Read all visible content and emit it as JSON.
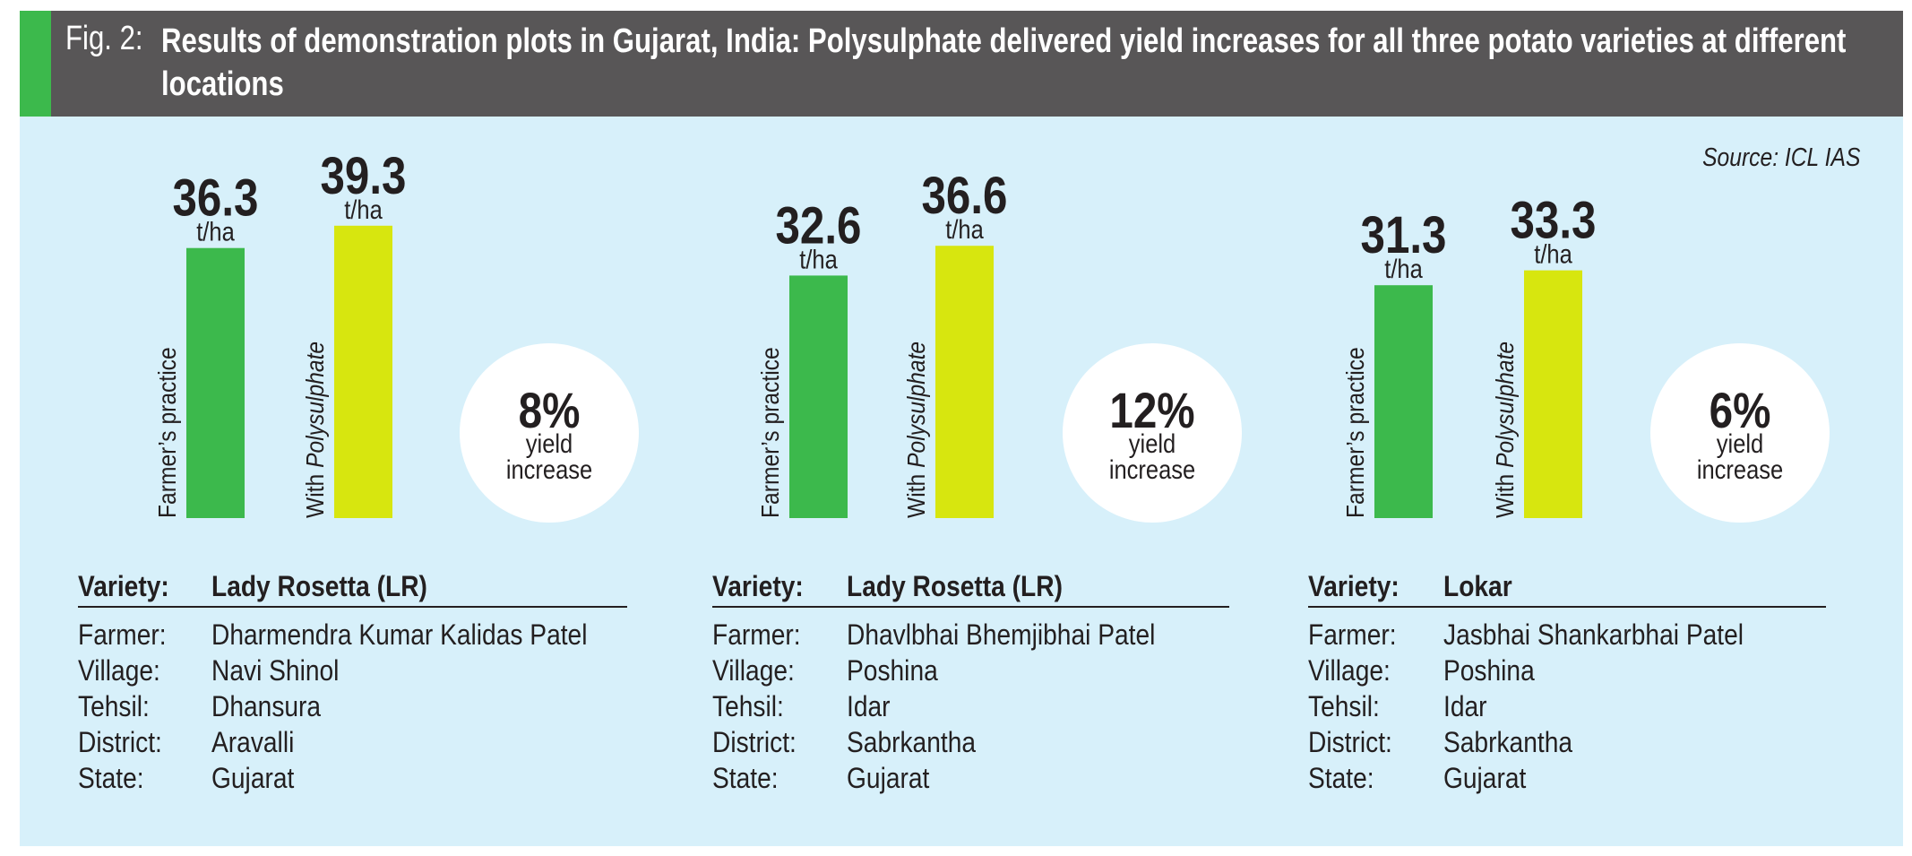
{
  "figure": {
    "label": "Fig. 2:",
    "title": "Results of demonstration plots in Gujarat, India: Polysulphate delivered yield increases for all three potato varieties at different locations",
    "source": "Source: ICL IAS"
  },
  "colors": {
    "header_bg": "#585657",
    "accent_green": "#3cb94c",
    "farmer_bar": "#3cb94c",
    "polysulphate_bar": "#d7e60f",
    "panel_bg": "#d7f0fa",
    "circle": "#ffffff",
    "text": "#231f20"
  },
  "chart_data": {
    "type": "bar",
    "title": "Results of demonstration plots in Gujarat, India: Polysulphate delivered yield increases for all three potato varieties at different locations",
    "unit": "t/ha",
    "series_labels": [
      "Farmer's practice",
      "With Polysulphate"
    ],
    "ylim": [
      0,
      40
    ],
    "grid": false,
    "groups": [
      {
        "variety": "Lady Rosetta (LR)",
        "farmer_practice": 36.3,
        "with_polysulphate": 39.3,
        "increase": "8%",
        "increase_label_1": "yield",
        "increase_label_2": "increase"
      },
      {
        "variety": "Lady Rosetta (LR)",
        "farmer_practice": 32.6,
        "with_polysulphate": 36.6,
        "increase": "12%",
        "increase_label_1": "yield",
        "increase_label_2": "increase"
      },
      {
        "variety": "Lokar",
        "farmer_practice": 31.3,
        "with_polysulphate": 33.3,
        "increase": "6%",
        "increase_label_1": "yield",
        "increase_label_2": "increase"
      }
    ]
  },
  "bar_labels": {
    "farmer": "Farmer’s practice",
    "poly_prefix": "With ",
    "poly_name": "Polysulphate",
    "unit": "t/ha"
  },
  "info_labels": [
    "Variety:",
    "Farmer:",
    "Village:",
    "Tehsil:",
    "District:",
    "State:"
  ],
  "locations": [
    {
      "variety": "Lady Rosetta (LR)",
      "farmer": "Dharmendra Kumar Kalidas Patel",
      "village": "Navi Shinol",
      "tehsil": "Dhansura",
      "district": "Aravalli",
      "state": "Gujarat"
    },
    {
      "variety": "Lady Rosetta (LR)",
      "farmer": "Dhavlbhai Bhemjibhai Patel",
      "village": "Poshina",
      "tehsil": "Idar",
      "district": "Sabrkantha",
      "state": "Gujarat"
    },
    {
      "variety": "Lokar",
      "farmer": "Jasbhai Shankarbhai Patel",
      "village": "Poshina",
      "tehsil": "Idar",
      "district": "Sabrkantha",
      "state": "Gujarat"
    }
  ]
}
